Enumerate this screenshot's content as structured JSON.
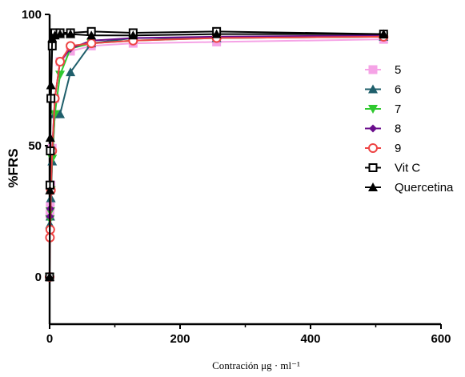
{
  "chart_data": {
    "type": "line",
    "title": "",
    "xlabel": "Contración μg · ml⁻¹",
    "ylabel": "%FRS",
    "xlim": [
      0,
      600
    ],
    "ylim": [
      -18,
      100
    ],
    "x_ticks": [
      "0",
      "200",
      "400",
      "600"
    ],
    "y_ticks": [
      "0",
      "50",
      "100"
    ],
    "grid": false,
    "legend_position": "right",
    "series": [
      {
        "name": "5",
        "color": "#f5a3e6",
        "marker": "square-filled",
        "x": [
          0,
          0.5,
          1,
          2,
          4,
          8,
          16,
          32,
          64,
          128,
          256,
          512
        ],
        "y": [
          0,
          24,
          27,
          35,
          49,
          68,
          82,
          86,
          88,
          89,
          89.5,
          90.5
        ]
      },
      {
        "name": "6",
        "color": "#1f5f6b",
        "marker": "triangle-up",
        "x": [
          0,
          0.5,
          1,
          2,
          4,
          8,
          16,
          32,
          64,
          128,
          256,
          512
        ],
        "y": [
          0,
          20,
          23,
          30,
          44,
          62,
          62,
          78,
          89,
          91,
          91,
          91.5
        ]
      },
      {
        "name": "7",
        "color": "#2fc92f",
        "marker": "triangle-down",
        "x": [
          0,
          0.5,
          1,
          2,
          4,
          8,
          16,
          32,
          64,
          128,
          256,
          512
        ],
        "y": [
          0,
          22,
          25,
          33,
          45,
          62,
          77,
          87,
          89,
          90,
          91,
          91.5
        ]
      },
      {
        "name": "8",
        "color": "#6a0d8c",
        "marker": "diamond",
        "x": [
          0,
          0.5,
          1,
          2,
          4,
          8,
          16,
          32,
          64,
          128,
          256,
          512
        ],
        "y": [
          0,
          23,
          26,
          34,
          48,
          68,
          82,
          87,
          90,
          91,
          91.5,
          92
        ]
      },
      {
        "name": "9",
        "color": "#ee4444",
        "marker": "circle-open",
        "x": [
          0,
          0.5,
          1,
          2,
          4,
          8,
          16,
          32,
          64,
          128,
          256,
          512
        ],
        "y": [
          0,
          15,
          18,
          33,
          48,
          68,
          82,
          88,
          89,
          90,
          91,
          91.5
        ]
      },
      {
        "name": "Vit C",
        "color": "#000000",
        "marker": "square-open",
        "x": [
          0,
          0.5,
          1,
          2,
          4,
          8,
          16,
          32,
          64,
          128,
          256,
          512
        ],
        "y": [
          0,
          35,
          48,
          68,
          88,
          93,
          93,
          93,
          93.5,
          93,
          93.5,
          92.5
        ]
      },
      {
        "name": "Quercetina",
        "color": "#000000",
        "marker": "triangle-up",
        "x": [
          0,
          0.5,
          1,
          2,
          4,
          8,
          16,
          32,
          64,
          128,
          256,
          512
        ],
        "y": [
          0,
          33,
          53,
          73,
          91,
          92,
          92.5,
          92.5,
          92,
          92,
          92.5,
          92.5
        ]
      }
    ]
  }
}
